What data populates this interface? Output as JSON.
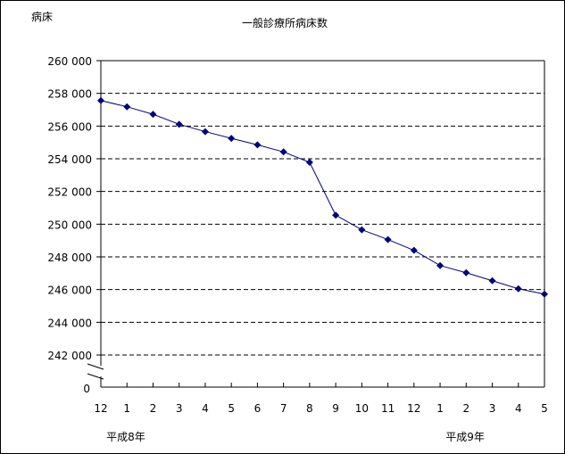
{
  "chart_data": {
    "type": "line",
    "title": "一般診療所病床数",
    "ylabel": "病床",
    "xlabel": "",
    "categories": [
      "12",
      "1",
      "2",
      "3",
      "4",
      "5",
      "6",
      "7",
      "8",
      "9",
      "10",
      "11",
      "12",
      "1",
      "2",
      "3",
      "4",
      "5"
    ],
    "year_labels": [
      {
        "label": "平成8年",
        "at_index": 0
      },
      {
        "label": "平成9年",
        "at_index": 13
      }
    ],
    "series": [
      {
        "values": [
          257560,
          257180,
          256720,
          256110,
          255660,
          255250,
          254850,
          254420,
          253780,
          250550,
          249660,
          249060,
          248400,
          247470,
          247030,
          246540,
          246050,
          245720
        ]
      }
    ],
    "ylim": [
      242000,
      260000
    ],
    "y_ticks": [
      "260 000",
      "258 000",
      "256 000",
      "254 000",
      "252 000",
      "250 000",
      "248 000",
      "246 000",
      "244 000",
      "242 000"
    ],
    "y_zero_label": "0",
    "axis_break": true,
    "grid": "horizontal-dashed",
    "line_color": "#000080",
    "marker": "diamond"
  }
}
